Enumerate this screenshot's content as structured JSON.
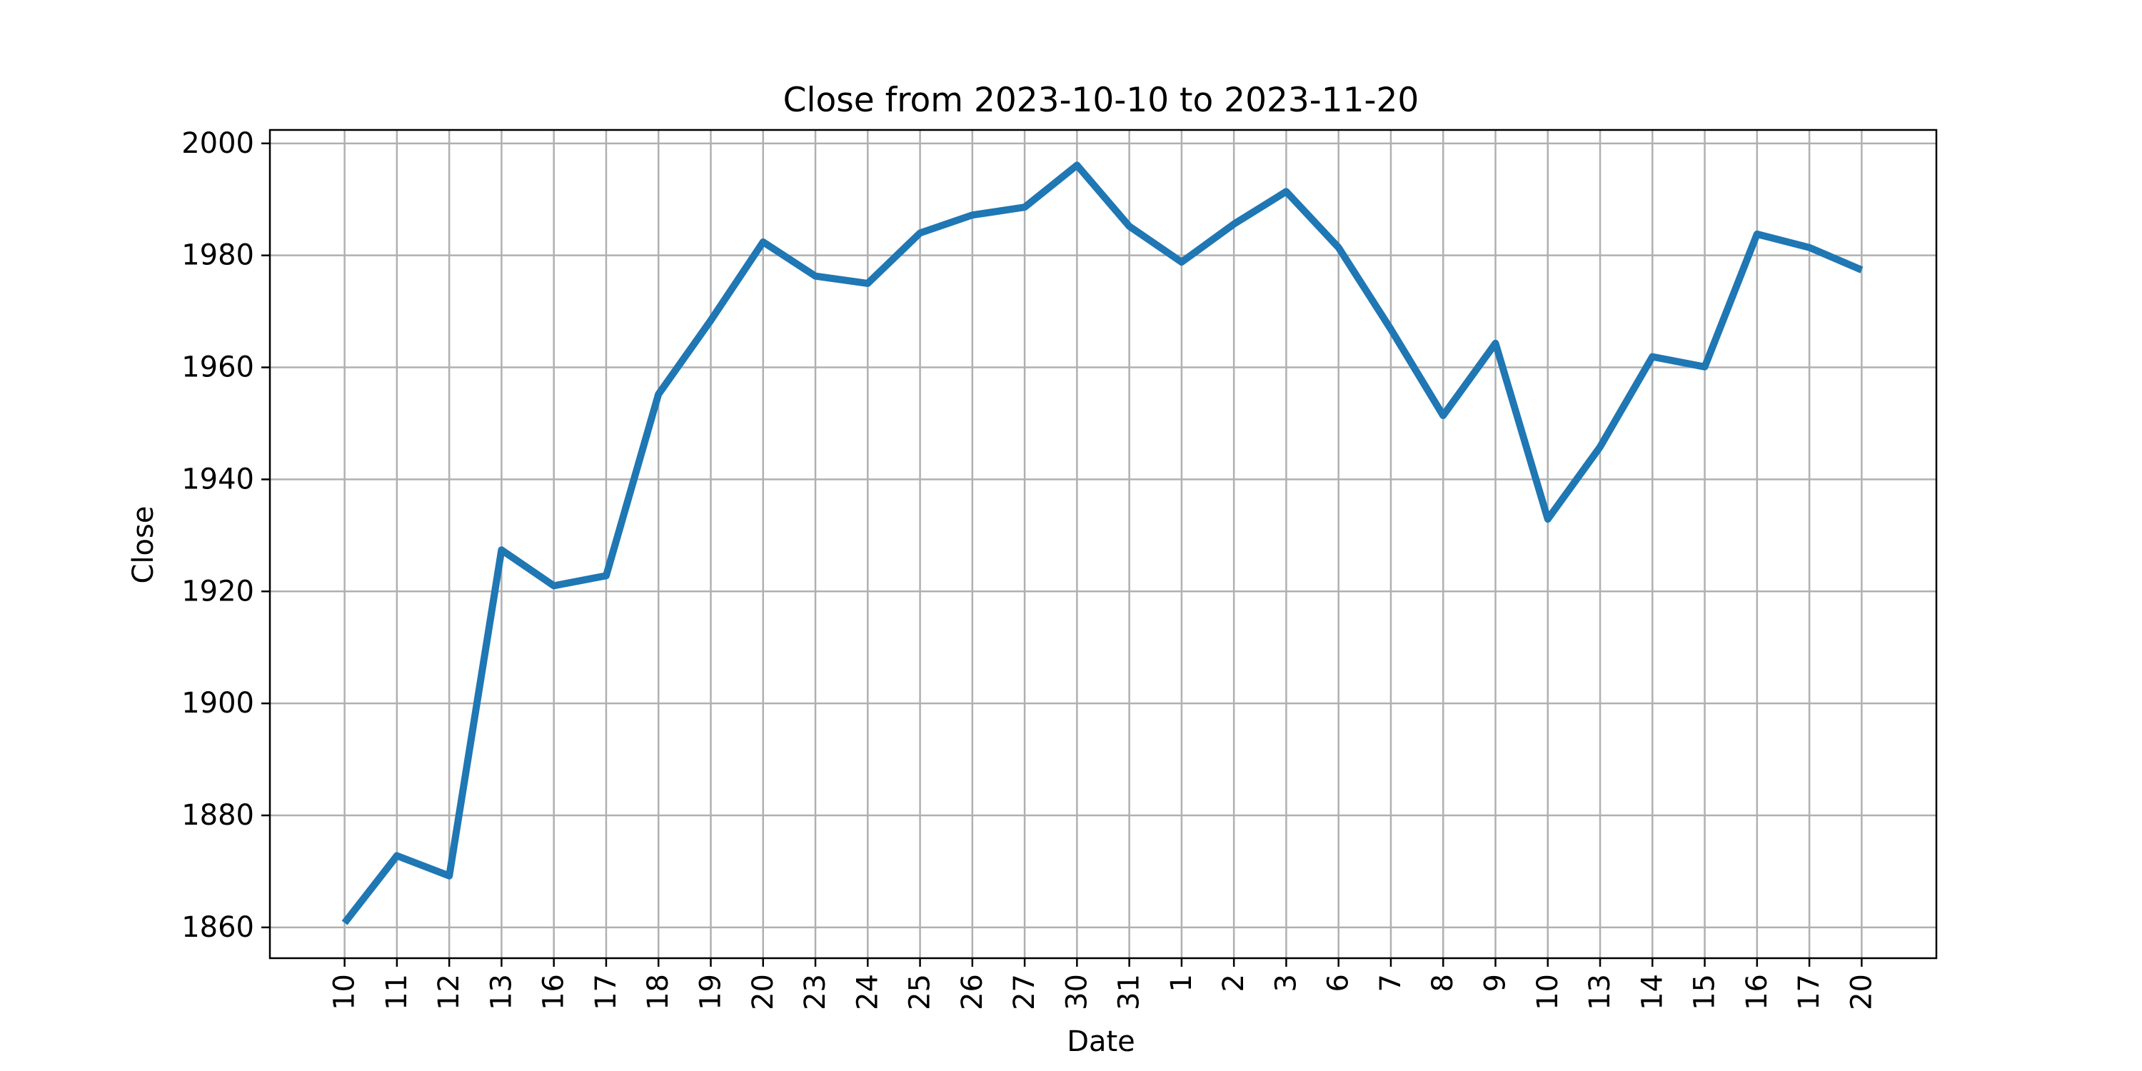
{
  "chart_data": {
    "type": "line",
    "title": "Close from 2023-10-10 to 2023-11-20",
    "xlabel": "Date",
    "ylabel": "Close",
    "x": [
      "2023-10-10",
      "2023-10-11",
      "2023-10-12",
      "2023-10-13",
      "2023-10-16",
      "2023-10-17",
      "2023-10-18",
      "2023-10-19",
      "2023-10-20",
      "2023-10-23",
      "2023-10-24",
      "2023-10-25",
      "2023-10-26",
      "2023-10-27",
      "2023-10-30",
      "2023-10-31",
      "2023-11-01",
      "2023-11-02",
      "2023-11-03",
      "2023-11-06",
      "2023-11-07",
      "2023-11-08",
      "2023-11-09",
      "2023-11-10",
      "2023-11-13",
      "2023-11-14",
      "2023-11-15",
      "2023-11-16",
      "2023-11-17",
      "2023-11-20"
    ],
    "x_tick_labels": [
      "10",
      "11",
      "12",
      "13",
      "16",
      "17",
      "18",
      "19",
      "20",
      "23",
      "24",
      "25",
      "26",
      "27",
      "30",
      "31",
      "1",
      "2",
      "3",
      "6",
      "7",
      "8",
      "9",
      "10",
      "13",
      "14",
      "15",
      "16",
      "17",
      "20"
    ],
    "series": [
      {
        "values": [
          1860.8,
          1872.8,
          1869.2,
          1927.4,
          1921.0,
          1922.8,
          1955.2,
          1968.4,
          1982.4,
          1976.3,
          1975.0,
          1984.0,
          1987.2,
          1988.6,
          1996.1,
          1985.2,
          1978.8,
          1985.6,
          1991.4,
          1981.4,
          1966.8,
          1951.4,
          1964.3,
          1932.9,
          1945.8,
          1961.9,
          1960.1,
          1983.8,
          1981.4,
          1977.4
        ],
        "color": "#1f77b4"
      }
    ],
    "y_ticks": [
      1860,
      1880,
      1900,
      1920,
      1940,
      1960,
      1980,
      2000
    ],
    "ylim": [
      1854.5,
      2002.4
    ],
    "grid": true,
    "legend": "none"
  }
}
